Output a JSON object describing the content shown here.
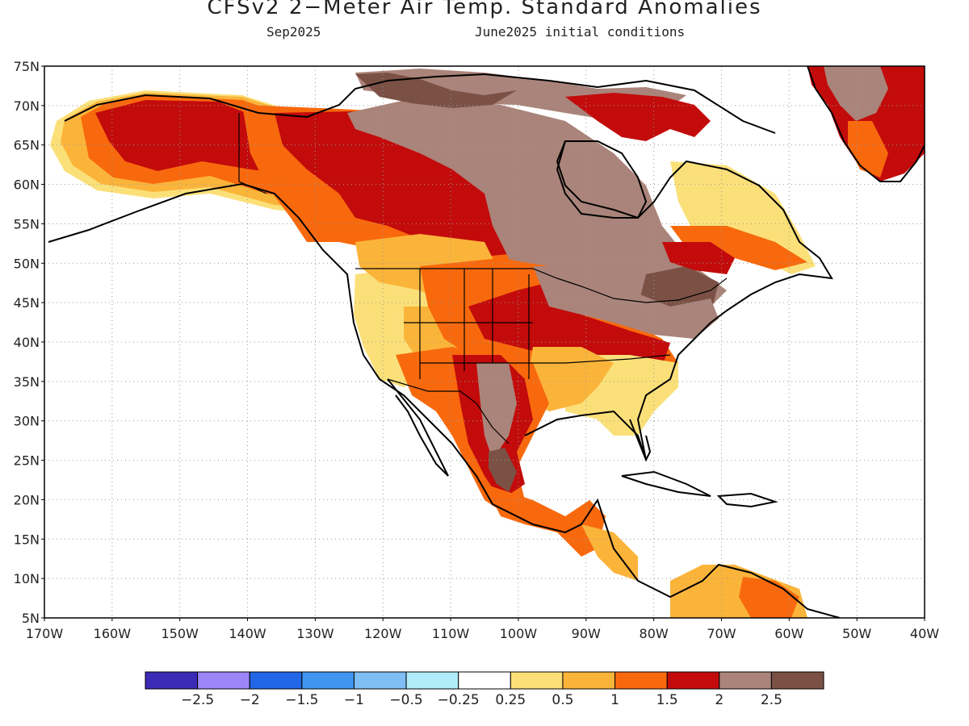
{
  "title": "CFSv2 2−Meter Air Temp. Standard Anomalies",
  "valid_month": "Sep2025",
  "initial_conditions": "June2025 initial conditions",
  "lat_labels": [
    "75N",
    "70N",
    "65N",
    "60N",
    "55N",
    "50N",
    "45N",
    "40N",
    "35N",
    "30N",
    "25N",
    "20N",
    "15N",
    "10N",
    "5N"
  ],
  "lon_labels": [
    "170W",
    "160W",
    "150W",
    "140W",
    "130W",
    "120W",
    "110W",
    "100W",
    "90W",
    "80W",
    "70W",
    "60W",
    "50W",
    "40W"
  ],
  "colorbar": {
    "colors": [
      "#3b2bb6",
      "#9c86f7",
      "#2166e6",
      "#3f95ef",
      "#7fbdf5",
      "#b1ecfa",
      "#ffffff",
      "#fbe079",
      "#fbb43a",
      "#f8690d",
      "#c30b0b",
      "#aa847a",
      "#7b5145"
    ],
    "labels": [
      "−2.5",
      "−2",
      "−1.5",
      "−1",
      "−0.5",
      "−0.25",
      "0.25",
      "0.5",
      "1",
      "1.5",
      "2",
      "2.5"
    ]
  },
  "chart_data": {
    "type": "heatmap",
    "title": "CFSv2 2−Meter Air Temp. Standard Anomalies",
    "subtitle": "Sep2025 — June2025 initial conditions",
    "x_range": [
      -170,
      -40
    ],
    "y_range": [
      5,
      75
    ],
    "x_ticks": [
      "170W",
      "160W",
      "150W",
      "140W",
      "130W",
      "120W",
      "110W",
      "100W",
      "90W",
      "80W",
      "70W",
      "60W",
      "50W",
      "40W"
    ],
    "y_ticks": [
      "75N",
      "70N",
      "65N",
      "60N",
      "55N",
      "50N",
      "45N",
      "40N",
      "35N",
      "30N",
      "25N",
      "20N",
      "15N",
      "10N",
      "5N"
    ],
    "color_levels": [
      -2.5,
      -2,
      -1.5,
      -1,
      -0.5,
      -0.25,
      0.25,
      0.5,
      1,
      1.5,
      2,
      2.5
    ],
    "grid": true
  }
}
